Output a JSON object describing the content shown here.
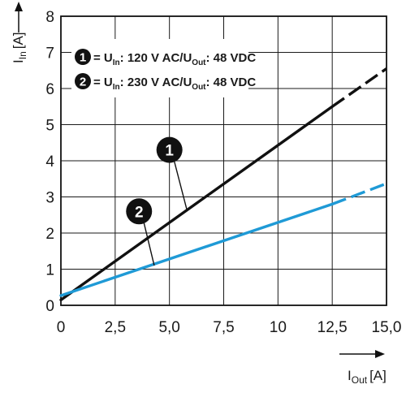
{
  "chart_data": {
    "type": "line",
    "x_axis": {
      "label_main": "I",
      "label_sub": "Out",
      "label_unit": "[A]",
      "range": [
        0,
        15
      ],
      "ticks": [
        0,
        2.5,
        5,
        7.5,
        10,
        12.5,
        15
      ],
      "tick_labels": [
        "0",
        "2,5",
        "5,0",
        "7,5",
        "10",
        "12,5",
        "15,0"
      ]
    },
    "y_axis": {
      "label_main": "I",
      "label_sub": "In",
      "label_unit": "[A]",
      "range": [
        0,
        8
      ],
      "ticks": [
        0,
        1,
        2,
        3,
        4,
        5,
        6,
        7,
        8
      ],
      "tick_labels": [
        "0",
        "1",
        "2",
        "3",
        "4",
        "5",
        "6",
        "7",
        "8"
      ]
    },
    "grid": true,
    "legend": {
      "placement": "top-left",
      "items": [
        {
          "marker": "1",
          "p1": " = U",
          "s1": "In",
          "p2": ": 120 V AC/U",
          "s2": "Out",
          "p3": ": 48 VDC"
        },
        {
          "marker": "2",
          "p1": " = U",
          "s1": "In",
          "p2": ": 230 V AC/U",
          "s2": "Out",
          "p3": ": 48 VDC"
        }
      ]
    },
    "series": [
      {
        "marker": "1",
        "color": "#111111",
        "x": [
          0,
          12.5,
          15
        ],
        "y": [
          0.15,
          5.5,
          6.55
        ],
        "solid_until": 12.5,
        "callout_at": {
          "x": 5.8,
          "y": 2.65
        },
        "label_pos": {
          "x": 5,
          "y": 4.3
        }
      },
      {
        "marker": "2",
        "color": "#1f9ad6",
        "x": [
          0,
          12.5,
          15
        ],
        "y": [
          0.27,
          2.8,
          3.37
        ],
        "solid_until": 12.5,
        "callout_at": {
          "x": 4.3,
          "y": 1.1
        },
        "label_pos": {
          "x": 3.6,
          "y": 2.6
        }
      }
    ]
  }
}
